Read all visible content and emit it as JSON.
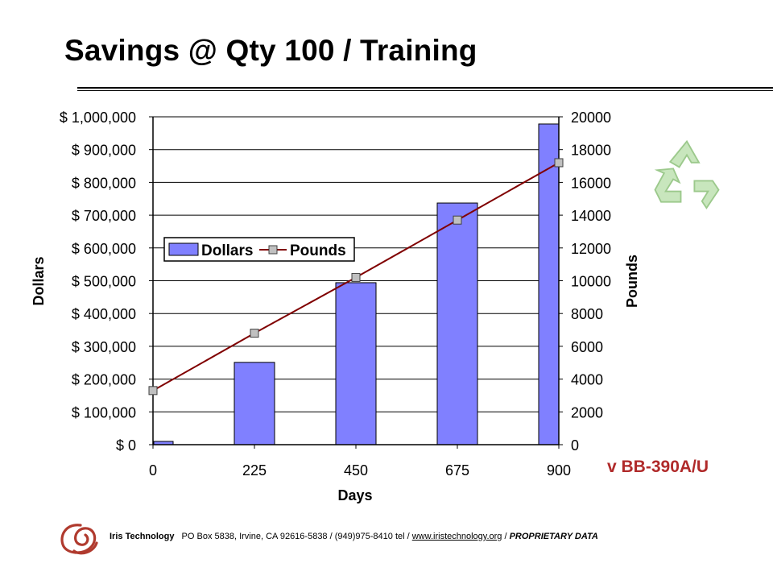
{
  "slide": {
    "title": "Savings @ Qty 100 / Training",
    "badge": "v BB-390A/U"
  },
  "footer": {
    "company": "Iris Technology",
    "address": "PO Box 5838, Irvine, CA  92616-5838  / (949)975-8410  tel / ",
    "link": "www.iristechnology.org",
    "sep": " / ",
    "proprietary": "PROPRIETARY DATA"
  },
  "icons": {
    "logo": "iris-logo-icon",
    "recycle": "recycle-icon"
  },
  "chart_data": {
    "type": "bar+line",
    "categories": [
      "0",
      "225",
      "450",
      "675",
      "900"
    ],
    "series": [
      {
        "name": "Dollars",
        "type": "bar",
        "axis": "left",
        "color": "#8080ff",
        "values": [
          10000,
          251000,
          494000,
          737000,
          978000
        ]
      },
      {
        "name": "Pounds",
        "type": "line",
        "axis": "right",
        "color": "#800000",
        "marker_color": "#c0c0c0",
        "values": [
          3300,
          6800,
          10200,
          13700,
          17200
        ]
      }
    ],
    "xlabel": "Days",
    "ylabel": "Dollars",
    "y2label": "Pounds",
    "ylim": [
      0,
      1000000
    ],
    "y2lim": [
      0,
      20000
    ],
    "yticks": [
      "$ 0",
      "$ 100,000",
      "$ 200,000",
      "$ 300,000",
      "$ 400,000",
      "$ 500,000",
      "$ 600,000",
      "$ 700,000",
      "$ 800,000",
      "$ 900,000",
      "$ 1,000,000"
    ],
    "y2ticks": [
      "0",
      "2000",
      "4000",
      "6000",
      "8000",
      "10000",
      "12000",
      "14000",
      "16000",
      "18000",
      "20000"
    ],
    "grid": true,
    "legend_position": "inside-top-left"
  }
}
